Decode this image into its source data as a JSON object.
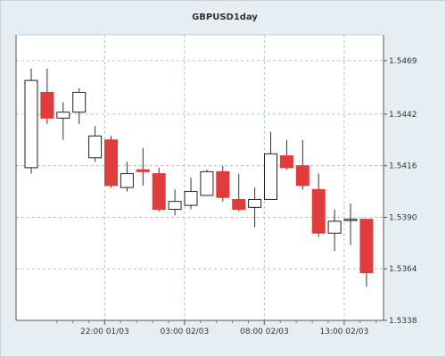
{
  "chart_data": {
    "type": "candlestick",
    "title": "GBPUSD1day",
    "ylim": [
      1.5338,
      1.5482
    ],
    "y_ticks": [
      "1.5469",
      "1.5442",
      "1.5416",
      "1.5390",
      "1.5364",
      "1.5338"
    ],
    "x_ticks": [
      {
        "label": "22:00 01/03",
        "index": 4.6
      },
      {
        "label": "03:00 02/03",
        "index": 9.6
      },
      {
        "label": "08:00 02/03",
        "index": 14.6
      },
      {
        "label": "13:00 02/03",
        "index": 19.6
      }
    ],
    "grid": true,
    "colors": {
      "up": "#ffffff",
      "down": "#e03c3c",
      "wick": "#333333",
      "grid": "#9cc8d0"
    },
    "candles": [
      {
        "open": 1.5415,
        "high": 1.5465,
        "low": 1.5412,
        "close": 1.5459
      },
      {
        "open": 1.5453,
        "high": 1.5465,
        "low": 1.5437,
        "close": 1.544
      },
      {
        "open": 1.544,
        "high": 1.5448,
        "low": 1.5429,
        "close": 1.5443
      },
      {
        "open": 1.5443,
        "high": 1.5455,
        "low": 1.5437,
        "close": 1.5453
      },
      {
        "open": 1.542,
        "high": 1.5436,
        "low": 1.5418,
        "close": 1.5431
      },
      {
        "open": 1.5429,
        "high": 1.5431,
        "low": 1.5405,
        "close": 1.5406
      },
      {
        "open": 1.5405,
        "high": 1.5418,
        "low": 1.5403,
        "close": 1.5412
      },
      {
        "open": 1.5414,
        "high": 1.5425,
        "low": 1.5406,
        "close": 1.5413
      },
      {
        "open": 1.5412,
        "high": 1.5415,
        "low": 1.5393,
        "close": 1.5394
      },
      {
        "open": 1.5394,
        "high": 1.5404,
        "low": 1.5391,
        "close": 1.5398
      },
      {
        "open": 1.5396,
        "high": 1.541,
        "low": 1.5394,
        "close": 1.5403
      },
      {
        "open": 1.5401,
        "high": 1.5414,
        "low": 1.5401,
        "close": 1.5413
      },
      {
        "open": 1.5413,
        "high": 1.5416,
        "low": 1.5398,
        "close": 1.54
      },
      {
        "open": 1.5399,
        "high": 1.5412,
        "low": 1.5393,
        "close": 1.5394
      },
      {
        "open": 1.5395,
        "high": 1.5405,
        "low": 1.5385,
        "close": 1.5399
      },
      {
        "open": 1.5399,
        "high": 1.5433,
        "low": 1.5399,
        "close": 1.5422
      },
      {
        "open": 1.5421,
        "high": 1.5429,
        "low": 1.5414,
        "close": 1.5415
      },
      {
        "open": 1.5416,
        "high": 1.5429,
        "low": 1.5404,
        "close": 1.5406
      },
      {
        "open": 1.5404,
        "high": 1.5412,
        "low": 1.538,
        "close": 1.5382
      },
      {
        "open": 1.5382,
        "high": 1.5394,
        "low": 1.5373,
        "close": 1.5388
      },
      {
        "open": 1.5389,
        "high": 1.5397,
        "low": 1.5376,
        "close": 1.5389
      },
      {
        "open": 1.5389,
        "high": 1.5389,
        "low": 1.5355,
        "close": 1.5362
      }
    ]
  }
}
